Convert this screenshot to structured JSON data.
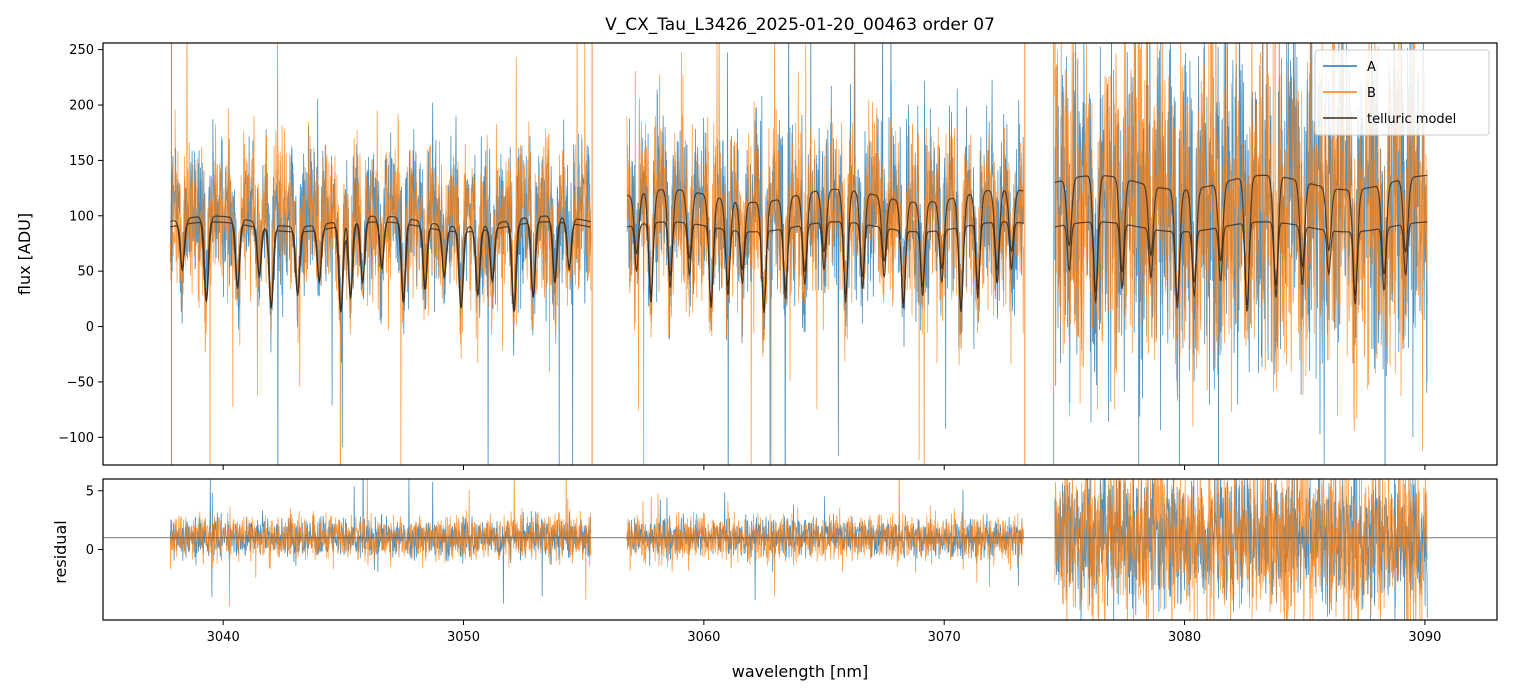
{
  "chart_data": [
    {
      "type": "line",
      "panel": "flux",
      "title": "V_CX_Tau_L3426_2025-01-20_00463  order 07",
      "xlabel": "",
      "ylabel": "flux [ADU]",
      "xlim": [
        3035.0,
        3093.0
      ],
      "ylim": [
        -125,
        256
      ],
      "yticks": [
        -100,
        -50,
        0,
        50,
        100,
        150,
        200,
        250
      ],
      "yticklabels": [
        "−100",
        "−50",
        "0",
        "50",
        "100",
        "150",
        "200",
        "250"
      ],
      "xticks": [
        3040,
        3050,
        3060,
        3070,
        3080,
        3090
      ],
      "xticklabels_shown": false,
      "grid": false,
      "legend_position": "top-right",
      "segments": [
        [
          3037.8,
          3055.3
        ],
        [
          3056.8,
          3073.3
        ],
        [
          3074.6,
          3090.1
        ]
      ],
      "series": [
        {
          "name": "A",
          "color": "#1f77b4",
          "kind": "noisy-spectrum",
          "line_width": 0.8,
          "opacity": 0.8
        },
        {
          "name": "B",
          "color": "#ff7f0e",
          "kind": "noisy-spectrum",
          "line_width": 0.8,
          "opacity": 0.75
        },
        {
          "name": "telluric model",
          "color": "#3a2a1e",
          "kind": "model",
          "line_width": 1.2,
          "opacity": 0.85
        }
      ],
      "telluric_model": {
        "segment_1": {
          "upper_continuum": 95,
          "lower_continuum": 90,
          "absorption_lines": [
            3038.3,
            3039.3,
            3040.6,
            3041.5,
            3042.0,
            3043.1,
            3044.0,
            3044.9,
            3045.3,
            3045.8,
            3046.6,
            3047.5,
            3048.4,
            3049.2,
            3049.9,
            3050.6,
            3051.2,
            3052.1,
            3052.9,
            3053.8,
            3054.4
          ]
        },
        "segment_2": {
          "upper_continuum": 118,
          "lower_continuum": 90,
          "absorption_lines": [
            3057.2,
            3057.8,
            3058.6,
            3059.4,
            3060.3,
            3061.0,
            3061.6,
            3062.5,
            3063.4,
            3064.2,
            3065.0,
            3065.9,
            3066.6,
            3067.5,
            3068.3,
            3069.1,
            3069.9,
            3070.7,
            3071.4,
            3072.2,
            3072.8
          ]
        },
        "segment_3": {
          "upper_continuum": 130,
          "lower_continuum": 90,
          "absorption_lines": [
            3075.2,
            3076.3,
            3077.4,
            3078.6,
            3079.7,
            3080.4,
            3081.5,
            3082.6,
            3083.8,
            3084.9,
            3086.0,
            3087.1,
            3088.3,
            3089.2
          ]
        }
      },
      "legend": [
        "A",
        "B",
        "telluric model"
      ]
    },
    {
      "type": "line",
      "panel": "residual",
      "title": "",
      "xlabel": "wavelength [nm]",
      "ylabel": "residual",
      "xlim": [
        3035.0,
        3093.0
      ],
      "ylim": [
        -6,
        6
      ],
      "yticks": [
        0,
        5
      ],
      "yticklabels": [
        "0",
        "5"
      ],
      "xticks": [
        3040,
        3050,
        3060,
        3070,
        3080,
        3090
      ],
      "xticklabels": [
        "3040",
        "3050",
        "3060",
        "3070",
        "3080",
        "3090"
      ],
      "reference_line": 1.0,
      "grid": false,
      "series": [
        {
          "name": "A",
          "color": "#1f77b4",
          "line_width": 0.8,
          "opacity": 0.8
        },
        {
          "name": "B",
          "color": "#ff7f0e",
          "line_width": 0.8,
          "opacity": 0.75
        }
      ]
    }
  ]
}
